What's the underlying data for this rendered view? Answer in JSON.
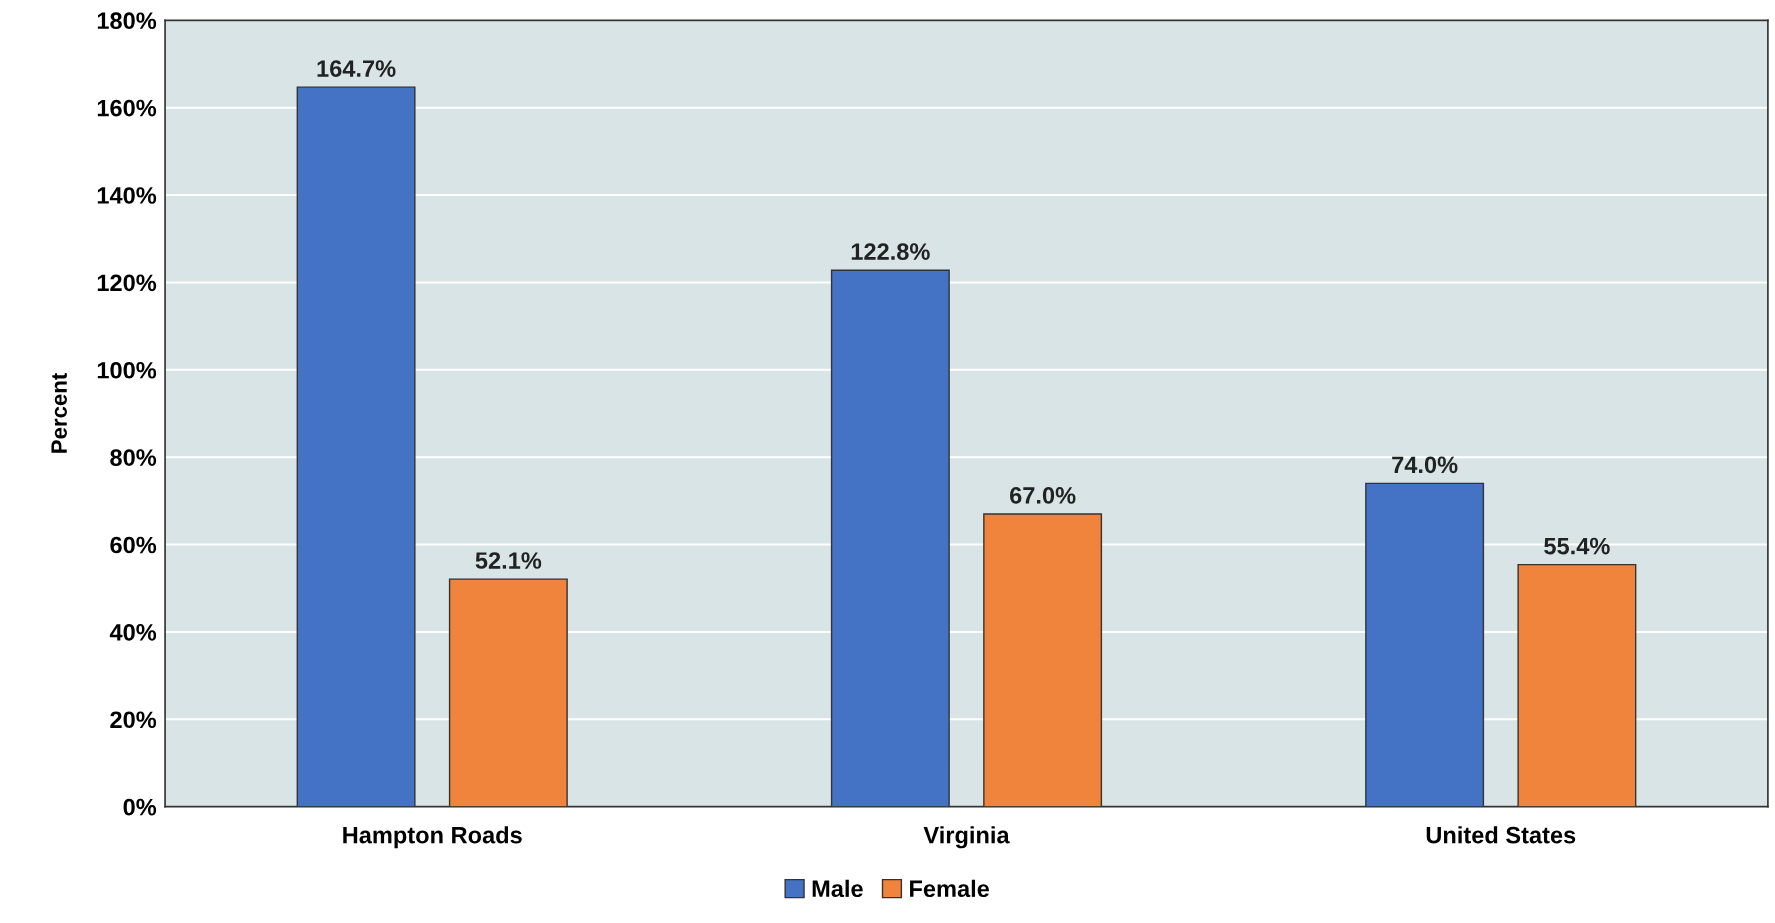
{
  "chart_data": {
    "type": "bar",
    "ylabel": "Percent",
    "categories": [
      "Hampton Roads",
      "Virginia",
      "United States"
    ],
    "series": [
      {
        "name": "Male",
        "color": "#4472c4",
        "values": [
          164.7,
          122.8,
          74.0
        ],
        "value_labels": [
          "164.7%",
          "122.8%",
          "74.0%"
        ]
      },
      {
        "name": "Female",
        "color": "#f0843c",
        "values": [
          52.1,
          67.0,
          55.4
        ],
        "value_labels": [
          "52.1%",
          "67.0%",
          "55.4%"
        ]
      }
    ],
    "ylim": [
      0,
      180
    ],
    "yticks": [
      {
        "value": 0,
        "label": "0%"
      },
      {
        "value": 20,
        "label": "20%"
      },
      {
        "value": 40,
        "label": "40%"
      },
      {
        "value": 60,
        "label": "60%"
      },
      {
        "value": 80,
        "label": "80%"
      },
      {
        "value": 100,
        "label": "100%"
      },
      {
        "value": 120,
        "label": "120%"
      },
      {
        "value": 140,
        "label": "140%"
      },
      {
        "value": 160,
        "label": "160%"
      },
      {
        "value": 180,
        "label": "180%"
      }
    ],
    "grid": "y",
    "legend": "bottom"
  }
}
